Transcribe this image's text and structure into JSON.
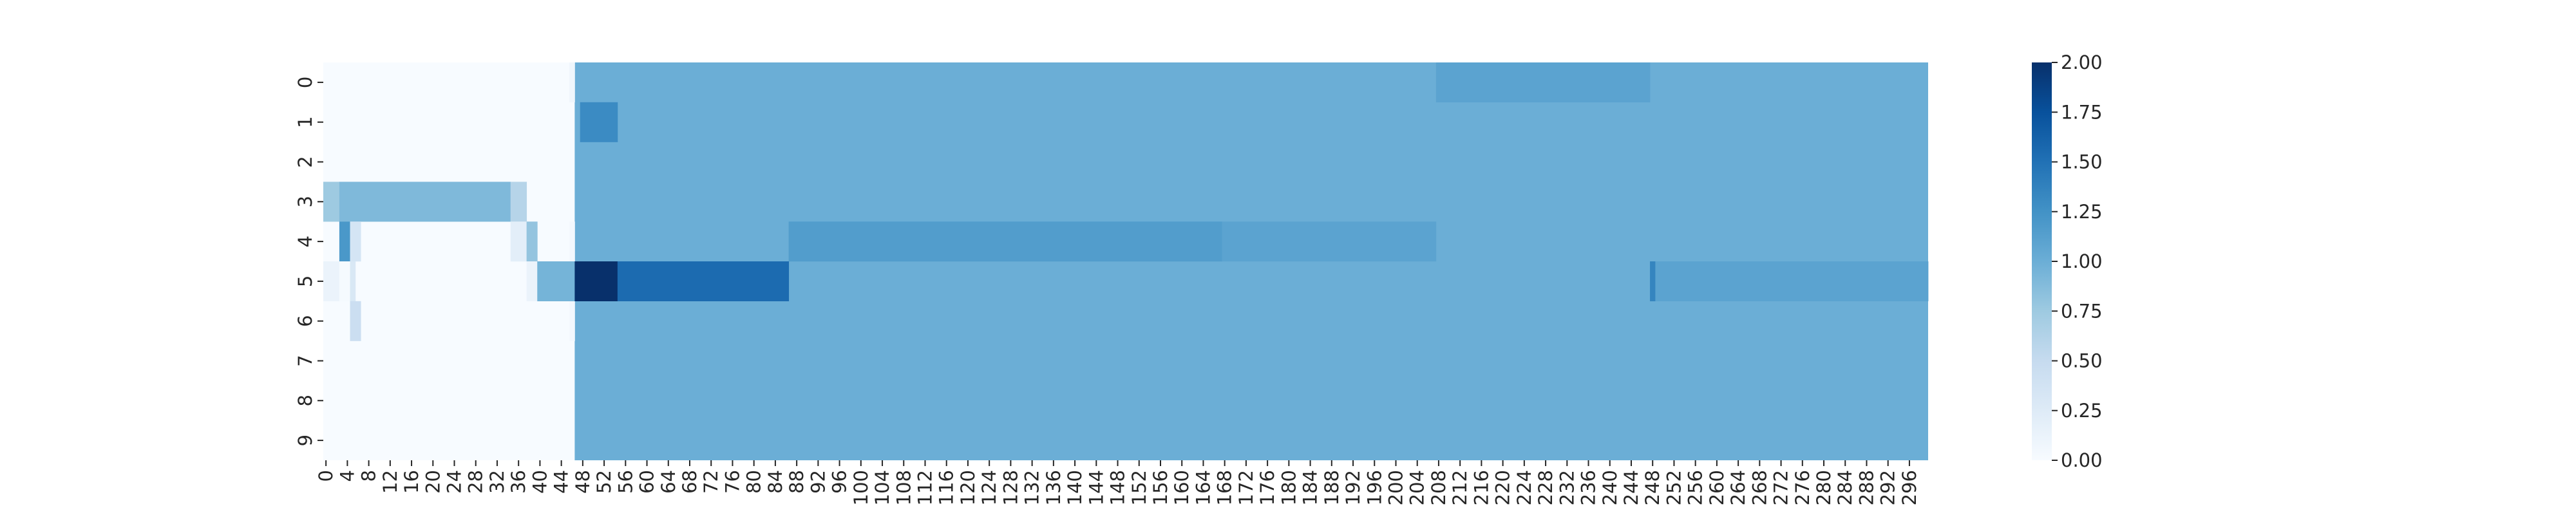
{
  "chart_data": {
    "type": "heatmap",
    "title": "",
    "xlabel": "",
    "ylabel": "",
    "colormap": "Blues",
    "vmin": 0,
    "vmax": 2,
    "n_rows": 10,
    "n_cols": 300,
    "x_tick_labels": [
      "0",
      "4",
      "8",
      "12",
      "16",
      "20",
      "24",
      "28",
      "32",
      "36",
      "40",
      "44",
      "48",
      "52",
      "56",
      "60",
      "64",
      "68",
      "72",
      "76",
      "80",
      "84",
      "88",
      "92",
      "96",
      "100",
      "104",
      "108",
      "112",
      "116",
      "120",
      "124",
      "128",
      "132",
      "136",
      "140",
      "144",
      "148",
      "152",
      "156",
      "160",
      "164",
      "168",
      "172",
      "176",
      "180",
      "184",
      "188",
      "192",
      "196",
      "200",
      "204",
      "208",
      "212",
      "216",
      "220",
      "224",
      "228",
      "232",
      "236",
      "240",
      "244",
      "248",
      "252",
      "256",
      "260",
      "264",
      "268",
      "272",
      "276",
      "280",
      "284",
      "288",
      "292",
      "296"
    ],
    "y_tick_labels": [
      "0",
      "1",
      "2",
      "3",
      "4",
      "5",
      "6",
      "7",
      "8",
      "9"
    ],
    "colorbar_ticks": [
      "0.00",
      "0.25",
      "0.50",
      "0.75",
      "1.00",
      "1.25",
      "1.50",
      "1.75",
      "2.00"
    ],
    "background_value": 0.0,
    "fill_from_col": 47,
    "fill_value": 1.0,
    "rect_overrides": [
      {
        "row": 0,
        "col_start": 46,
        "col_end": 47,
        "value": 0.08
      },
      {
        "row": 4,
        "col_start": 46,
        "col_end": 47,
        "value": 0.04
      },
      {
        "row": 6,
        "col_start": 46,
        "col_end": 47,
        "value": 0.04
      },
      {
        "row": 0,
        "col_start": 208,
        "col_end": 248,
        "value": 1.1
      },
      {
        "row": 1,
        "col_start": 48,
        "col_end": 55,
        "value": 1.3
      },
      {
        "row": 3,
        "col_start": 0,
        "col_end": 3,
        "value": 0.75
      },
      {
        "row": 3,
        "col_start": 3,
        "col_end": 35,
        "value": 0.9
      },
      {
        "row": 3,
        "col_start": 35,
        "col_end": 38,
        "value": 0.6
      },
      {
        "row": 4,
        "col_start": 3,
        "col_end": 5,
        "value": 1.2
      },
      {
        "row": 4,
        "col_start": 5,
        "col_end": 7,
        "value": 0.35
      },
      {
        "row": 4,
        "col_start": 35,
        "col_end": 38,
        "value": 0.2
      },
      {
        "row": 4,
        "col_start": 38,
        "col_end": 40,
        "value": 0.8
      },
      {
        "row": 4,
        "col_start": 87,
        "col_end": 168,
        "value": 1.15
      },
      {
        "row": 4,
        "col_start": 168,
        "col_end": 208,
        "value": 1.1
      },
      {
        "row": 5,
        "col_start": 0,
        "col_end": 3,
        "value": 0.12
      },
      {
        "row": 5,
        "col_start": 3,
        "col_end": 5,
        "value": 0.02
      },
      {
        "row": 5,
        "col_start": 5,
        "col_end": 6,
        "value": 0.3
      },
      {
        "row": 5,
        "col_start": 38,
        "col_end": 40,
        "value": 0.12
      },
      {
        "row": 5,
        "col_start": 40,
        "col_end": 47,
        "value": 0.95
      },
      {
        "row": 5,
        "col_start": 47,
        "col_end": 55,
        "value": 2.0
      },
      {
        "row": 5,
        "col_start": 55,
        "col_end": 87,
        "value": 1.55
      },
      {
        "row": 5,
        "col_start": 248,
        "col_end": 249,
        "value": 1.35
      },
      {
        "row": 5,
        "col_start": 249,
        "col_end": 300,
        "value": 1.1
      },
      {
        "row": 6,
        "col_start": 5,
        "col_end": 7,
        "value": 0.45
      }
    ]
  }
}
